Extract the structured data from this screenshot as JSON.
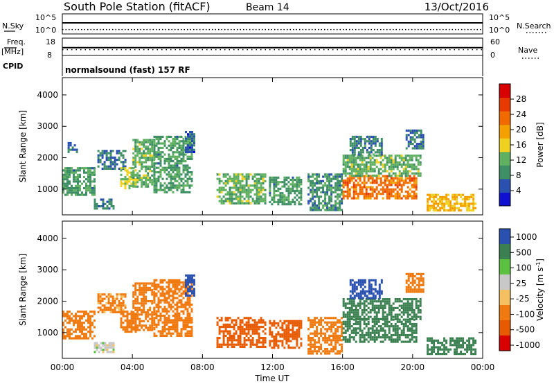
{
  "header": {
    "station": "South Pole Station (fitACF)",
    "beam": "Beam 14",
    "date": "13/Oct/2016",
    "cpid_label": "CPID",
    "cpid_value": "normalsound (fast) 157 RF"
  },
  "colors": {
    "background": "#ffffff",
    "axis": "#000000",
    "power_scale": [
      "#1010d0",
      "#2a50b0",
      "#3f8f66",
      "#5fb060",
      "#f0d020",
      "#f3a000",
      "#f06a00",
      "#e63a00",
      "#d80000"
    ],
    "velocity_scale": [
      "#2a50b0",
      "#3a8050",
      "#5cc040",
      "#c8c8c8",
      "#f5c060",
      "#f07a10",
      "#e85a00",
      "#d80000"
    ]
  },
  "chart_data": [
    {
      "type": "line",
      "panel": "noise",
      "left_label": "N.Sky",
      "right_label": "N.Search",
      "left_ticks": [
        "10^5",
        "10^0"
      ],
      "right_ticks": [
        "10^5",
        "10^0"
      ],
      "series": [
        {
          "name": "N.Sky",
          "style": "solid",
          "level": 0.55
        },
        {
          "name": "N.Search",
          "style": "dotted",
          "level": 0.22
        }
      ]
    },
    {
      "type": "line",
      "panel": "frequency",
      "left_label": "Freq.",
      "left_unit": "[MHz]",
      "right_label": "Nave",
      "left_ticks": [
        "18",
        "8"
      ],
      "right_ticks": [
        "60",
        "0"
      ],
      "series": [
        {
          "name": "Freq.",
          "style": "solid",
          "value": 12.5,
          "ylim": [
            8,
            18
          ]
        },
        {
          "name": "Nave",
          "style": "dotted",
          "value": 20,
          "ylim": [
            0,
            60
          ]
        }
      ]
    },
    {
      "type": "heatmap",
      "panel": "power",
      "ylabel": "Slant Range [km]",
      "yticks": [
        "1000",
        "2000",
        "3000",
        "4000"
      ],
      "yvalues": [
        1000,
        2000,
        3000,
        4000
      ],
      "ylim": [
        180,
        4550
      ],
      "xlim": [
        0,
        24
      ],
      "colorbar_label": "Power [dB]",
      "colorbar_ticks": [
        "4",
        "8",
        "12",
        "16",
        "20",
        "24",
        "28"
      ],
      "colorbar_values": [
        4,
        8,
        12,
        16,
        20,
        24,
        28
      ],
      "colorbar_range": [
        0,
        32
      ],
      "echo_regions": [
        {
          "t": [
            0.0,
            1.8
          ],
          "r": [
            800,
            1700
          ],
          "v": 10
        },
        {
          "t": [
            0.3,
            0.8
          ],
          "r": [
            2150,
            2500
          ],
          "v": 6
        },
        {
          "t": [
            1.8,
            2.9
          ],
          "r": [
            350,
            700
          ],
          "v": 8
        },
        {
          "t": [
            2.0,
            3.6
          ],
          "r": [
            1650,
            2250
          ],
          "v": 7
        },
        {
          "t": [
            3.3,
            4.2
          ],
          "r": [
            1000,
            1700
          ],
          "v": 14
        },
        {
          "t": [
            4.0,
            5.2
          ],
          "r": [
            1100,
            2600
          ],
          "v": 12
        },
        {
          "t": [
            5.2,
            7.4
          ],
          "r": [
            900,
            2700
          ],
          "v": 10
        },
        {
          "t": [
            7.0,
            7.5
          ],
          "r": [
            2200,
            2850
          ],
          "v": 6
        },
        {
          "t": [
            8.8,
            11.6
          ],
          "r": [
            550,
            1500
          ],
          "v": 12
        },
        {
          "t": [
            11.8,
            13.6
          ],
          "r": [
            550,
            1400
          ],
          "v": 10
        },
        {
          "t": [
            14.0,
            16.0
          ],
          "r": [
            350,
            1500
          ],
          "v": 9
        },
        {
          "t": [
            16.0,
            20.2
          ],
          "r": [
            700,
            1450
          ],
          "v": 23
        },
        {
          "t": [
            16.0,
            20.4
          ],
          "r": [
            1450,
            2100
          ],
          "v": 12
        },
        {
          "t": [
            16.4,
            18.2
          ],
          "r": [
            2100,
            2700
          ],
          "v": 8
        },
        {
          "t": [
            19.6,
            20.6
          ],
          "r": [
            2300,
            2900
          ],
          "v": 7
        },
        {
          "t": [
            20.8,
            23.6
          ],
          "r": [
            350,
            850
          ],
          "v": 18
        }
      ]
    },
    {
      "type": "heatmap",
      "panel": "velocity",
      "ylabel": "Slant Range [km]",
      "yticks": [
        "1000",
        "2000",
        "3000",
        "4000"
      ],
      "yvalues": [
        1000,
        2000,
        3000,
        4000
      ],
      "ylim": [
        180,
        4550
      ],
      "xlim": [
        0,
        24
      ],
      "xlabel": "Time UT",
      "xticks": [
        "00:00",
        "04:00",
        "08:00",
        "12:00",
        "16:00",
        "20:00",
        "00:00"
      ],
      "xvalues": [
        0,
        4,
        8,
        12,
        16,
        20,
        24
      ],
      "colorbar_label": "Velocity [m s^-1]",
      "colorbar_ticks": [
        "1000",
        "500",
        "100",
        "25",
        "-25",
        "-100",
        "-500",
        "-1000"
      ],
      "echo_regions": [
        {
          "t": [
            0.0,
            1.8
          ],
          "r": [
            800,
            1700
          ],
          "v": -300
        },
        {
          "t": [
            1.8,
            2.9
          ],
          "r": [
            350,
            700
          ],
          "v": 0
        },
        {
          "t": [
            2.0,
            3.6
          ],
          "r": [
            1650,
            2250
          ],
          "v": -120
        },
        {
          "t": [
            3.3,
            4.2
          ],
          "r": [
            1000,
            1700
          ],
          "v": -400
        },
        {
          "t": [
            4.0,
            5.2
          ],
          "r": [
            1100,
            2600
          ],
          "v": -300
        },
        {
          "t": [
            5.2,
            7.4
          ],
          "r": [
            900,
            2700
          ],
          "v": -200
        },
        {
          "t": [
            7.0,
            7.5
          ],
          "r": [
            2200,
            2850
          ],
          "v": 600
        },
        {
          "t": [
            8.8,
            11.6
          ],
          "r": [
            550,
            1500
          ],
          "v": -700
        },
        {
          "t": [
            11.8,
            13.6
          ],
          "r": [
            550,
            1400
          ],
          "v": -800
        },
        {
          "t": [
            14.0,
            16.0
          ],
          "r": [
            350,
            1500
          ],
          "v": -400
        },
        {
          "t": [
            16.0,
            20.2
          ],
          "r": [
            700,
            1450
          ],
          "v": 180
        },
        {
          "t": [
            16.0,
            20.4
          ],
          "r": [
            1450,
            2100
          ],
          "v": 250
        },
        {
          "t": [
            16.4,
            18.2
          ],
          "r": [
            2100,
            2700
          ],
          "v": 700
        },
        {
          "t": [
            19.6,
            20.6
          ],
          "r": [
            2300,
            2900
          ],
          "v": -150
        },
        {
          "t": [
            20.8,
            23.6
          ],
          "r": [
            350,
            850
          ],
          "v": 220
        }
      ]
    }
  ]
}
